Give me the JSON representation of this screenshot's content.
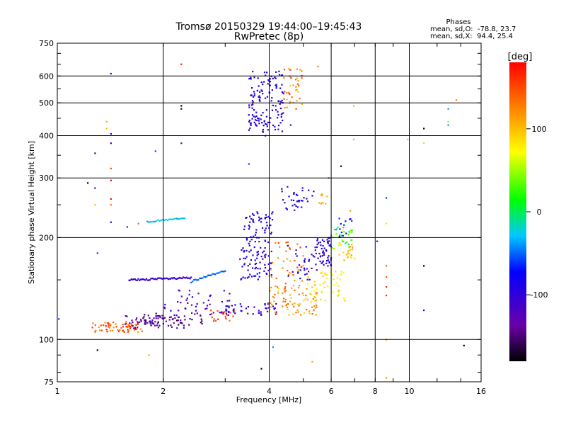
{
  "chart_data": {
    "type": "scatter",
    "title": "Tromsø 20150329 19:44:00–19:45:43",
    "subtitle": "RwPretec (8p)",
    "xlabel": "Frequency [MHz]",
    "ylabel": "Stationary phase Virtual Height [km]",
    "x_scale": "log",
    "y_scale": "log",
    "xlim": [
      1,
      16
    ],
    "ylim": [
      75,
      750
    ],
    "x_ticks": [
      1,
      2,
      4,
      6,
      8,
      10,
      16
    ],
    "y_ticks": [
      75,
      100,
      200,
      300,
      400,
      500,
      600,
      750
    ],
    "grid": true,
    "phases": {
      "title": "Phases",
      "line_o": "mean, sd,O:  -78.8, 23.7",
      "line_x": "mean, sd,X:  94.4, 25.4"
    },
    "colorbar": {
      "label": "[deg]",
      "range": [
        -180,
        180
      ],
      "ticks": [
        100,
        0,
        -100
      ],
      "colormap": "rainbow",
      "colors": [
        "#000000",
        "#6a00a8",
        "#0000ff",
        "#00c8ff",
        "#00ff00",
        "#ffff00",
        "#ff8000",
        "#ff0000"
      ]
    },
    "clusters": [
      {
        "f": [
          1.25,
          1.75
        ],
        "h": [
          105,
          113
        ],
        "phase": [
          110,
          180
        ],
        "n": 70
      },
      {
        "f": [
          1.55,
          2.3
        ],
        "h": [
          108,
          118
        ],
        "phase": [
          -150,
          -110
        ],
        "n": 60
      },
      {
        "f": [
          1.75,
          2.6
        ],
        "h": [
          110,
          120
        ],
        "phase": [
          -170,
          -120
        ],
        "n": 40
      },
      {
        "f": [
          2.7,
          3.2
        ],
        "h": [
          113,
          122
        ],
        "phase": [
          130,
          170
        ],
        "n": 20
      },
      {
        "f": [
          2.0,
          3.1
        ],
        "h": [
          118,
          140
        ],
        "phase": [
          -140,
          -90
        ],
        "n": 45
      },
      {
        "f": [
          3.0,
          4.2
        ],
        "h": [
          118,
          128
        ],
        "phase": [
          -110,
          -80
        ],
        "n": 45
      },
      {
        "f": [
          4.0,
          5.5
        ],
        "h": [
          118,
          145
        ],
        "phase": [
          90,
          140
        ],
        "n": 80
      },
      {
        "f": [
          5.0,
          6.6
        ],
        "h": [
          130,
          160
        ],
        "phase": [
          60,
          100
        ],
        "n": 50
      },
      {
        "f": [
          3.3,
          4.1
        ],
        "h": [
          150,
          240
        ],
        "phase": [
          -110,
          -80
        ],
        "n": 130
      },
      {
        "f": [
          4.0,
          5.0
        ],
        "h": [
          140,
          200
        ],
        "phase": [
          100,
          160
        ],
        "n": 40
      },
      {
        "f": [
          4.5,
          5.5
        ],
        "h": [
          150,
          190
        ],
        "phase": [
          -120,
          -70
        ],
        "n": 30
      },
      {
        "f": [
          5.4,
          6.0
        ],
        "h": [
          165,
          200
        ],
        "phase": [
          -110,
          -80
        ],
        "n": 55
      },
      {
        "f": [
          6.0,
          6.9
        ],
        "h": [
          185,
          215
        ],
        "phase": [
          -30,
          70
        ],
        "n": 35
      },
      {
        "f": [
          6.3,
          7.0
        ],
        "h": [
          170,
          195
        ],
        "phase": [
          90,
          120
        ],
        "n": 20
      },
      {
        "f": [
          3.5,
          4.4
        ],
        "h": [
          410,
          620
        ],
        "phase": [
          -110,
          -80
        ],
        "n": 140
      },
      {
        "f": [
          4.4,
          5.0
        ],
        "h": [
          480,
          640
        ],
        "phase": [
          90,
          170
        ],
        "n": 40
      },
      {
        "f": [
          4.3,
          5.4
        ],
        "h": [
          240,
          285
        ],
        "phase": [
          -110,
          -80
        ],
        "n": 35
      },
      {
        "f": [
          5.5,
          5.9
        ],
        "h": [
          250,
          270
        ],
        "phase": [
          100,
          120
        ],
        "n": 8
      },
      {
        "f": [
          6.3,
          6.9
        ],
        "h": [
          200,
          230
        ],
        "phase": [
          -90,
          -60
        ],
        "n": 12
      }
    ],
    "lines": [
      {
        "f": [
          1.6,
          2.4
        ],
        "h": [
          150,
          152
        ],
        "phase": [
          -110,
          -100
        ],
        "n": 55
      },
      {
        "f": [
          2.4,
          3.0
        ],
        "h": [
          148,
          160
        ],
        "phase": [
          -60,
          -40
        ],
        "n": 25
      },
      {
        "f": [
          1.8,
          2.3
        ],
        "h": [
          223,
          228
        ],
        "phase": [
          -40,
          -20
        ],
        "n": 25
      }
    ],
    "points": [
      {
        "x": 1.42,
        "y": 610,
        "phase": -100
      },
      {
        "x": 2.25,
        "y": 650,
        "phase": 170
      },
      {
        "x": 2.25,
        "y": 490,
        "phase": -170
      },
      {
        "x": 2.25,
        "y": 480,
        "phase": -170
      },
      {
        "x": 2.25,
        "y": 380,
        "phase": -130
      },
      {
        "x": 1.42,
        "y": 405,
        "phase": -100
      },
      {
        "x": 1.42,
        "y": 380,
        "phase": -100
      },
      {
        "x": 1.38,
        "y": 440,
        "phase": 110
      },
      {
        "x": 1.38,
        "y": 420,
        "phase": 100
      },
      {
        "x": 1.9,
        "y": 360,
        "phase": -60
      },
      {
        "x": 1.28,
        "y": 355,
        "phase": -150
      },
      {
        "x": 1.42,
        "y": 320,
        "phase": 150
      },
      {
        "x": 1.42,
        "y": 295,
        "phase": 180
      },
      {
        "x": 1.42,
        "y": 260,
        "phase": 180
      },
      {
        "x": 1.42,
        "y": 250,
        "phase": 130
      },
      {
        "x": 1.42,
        "y": 222,
        "phase": -100
      },
      {
        "x": 1.28,
        "y": 280,
        "phase": -120
      },
      {
        "x": 1.22,
        "y": 290,
        "phase": -180
      },
      {
        "x": 1.28,
        "y": 250,
        "phase": 100
      },
      {
        "x": 1.58,
        "y": 215,
        "phase": -60
      },
      {
        "x": 1.7,
        "y": 220,
        "phase": 140
      },
      {
        "x": 1.3,
        "y": 180,
        "phase": -60
      },
      {
        "x": 1.3,
        "y": 93,
        "phase": -180
      },
      {
        "x": 1.82,
        "y": 90,
        "phase": 110
      },
      {
        "x": 1.01,
        "y": 115,
        "phase": -60
      },
      {
        "x": 3.8,
        "y": 82,
        "phase": -180
      },
      {
        "x": 4.1,
        "y": 95,
        "phase": -40
      },
      {
        "x": 5.3,
        "y": 86,
        "phase": 110
      },
      {
        "x": 6.4,
        "y": 325,
        "phase": -180
      },
      {
        "x": 6.95,
        "y": 390,
        "phase": 110
      },
      {
        "x": 6.95,
        "y": 490,
        "phase": 40
      },
      {
        "x": 8.1,
        "y": 195,
        "phase": -130
      },
      {
        "x": 8.6,
        "y": 262,
        "phase": -60
      },
      {
        "x": 8.6,
        "y": 220,
        "phase": 60
      },
      {
        "x": 8.6,
        "y": 165,
        "phase": 140
      },
      {
        "x": 8.6,
        "y": 153,
        "phase": 140
      },
      {
        "x": 8.6,
        "y": 143,
        "phase": 160
      },
      {
        "x": 8.6,
        "y": 135,
        "phase": 160
      },
      {
        "x": 8.6,
        "y": 100,
        "phase": 140
      },
      {
        "x": 8.6,
        "y": 77,
        "phase": 120
      },
      {
        "x": 9.9,
        "y": 390,
        "phase": 100
      },
      {
        "x": 11.0,
        "y": 420,
        "phase": -180
      },
      {
        "x": 11.0,
        "y": 380,
        "phase": 90
      },
      {
        "x": 11.0,
        "y": 165,
        "phase": -180
      },
      {
        "x": 11.0,
        "y": 122,
        "phase": -100
      },
      {
        "x": 12.9,
        "y": 480,
        "phase": -40
      },
      {
        "x": 12.9,
        "y": 440,
        "phase": 40
      },
      {
        "x": 12.9,
        "y": 430,
        "phase": -40
      },
      {
        "x": 13.6,
        "y": 510,
        "phase": 120
      },
      {
        "x": 14.3,
        "y": 96,
        "phase": -180
      },
      {
        "x": 5.5,
        "y": 640,
        "phase": 130
      },
      {
        "x": 5.9,
        "y": 300,
        "phase": -40
      },
      {
        "x": 6.8,
        "y": 240,
        "phase": 120
      },
      {
        "x": 3.5,
        "y": 330,
        "phase": -60
      },
      {
        "x": 3.9,
        "y": 400,
        "phase": -100
      },
      {
        "x": 4.6,
        "y": 430,
        "phase": -110
      }
    ]
  }
}
